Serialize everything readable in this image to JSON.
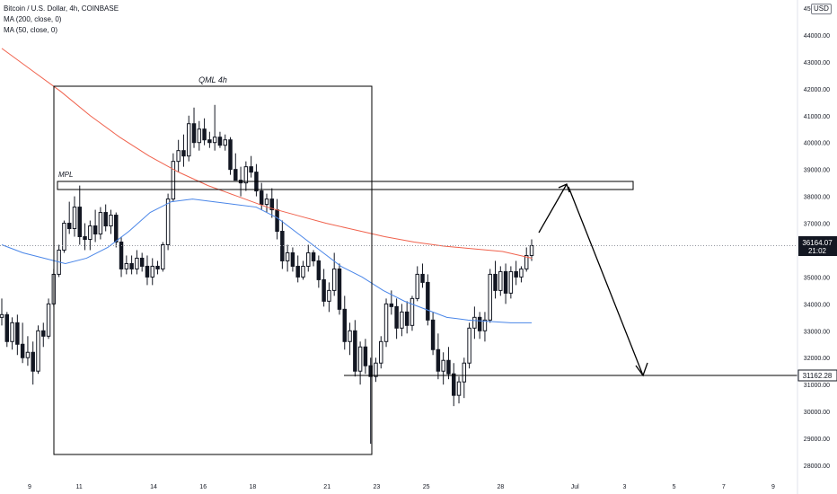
{
  "legend": {
    "symbol": "Bitcoin / U.S. Dollar, 4h, COINBASE",
    "ma200": "MA (200, close, 0)",
    "ma50": "MA (50, close, 0)"
  },
  "currency_badge": "USD",
  "colors": {
    "up": "#131722",
    "down": "#131722",
    "ma200": "#f0624d",
    "ma50": "#4a86e8",
    "annotation": "#000000",
    "axis_text": "#131722",
    "grid_dotted": "#9598a1"
  },
  "chart_data": {
    "type": "candlestick",
    "title": "Bitcoin / U.S. Dollar, 4h, COINBASE",
    "ylim": [
      27600,
      45300
    ],
    "y_ticks": [
      28000,
      29000,
      30000,
      31000,
      32000,
      33000,
      34000,
      35000,
      36000,
      37000,
      38000,
      39000,
      40000,
      41000,
      42000,
      43000,
      44000,
      45000
    ],
    "y_tick_labels": [
      "28000.00",
      "29000.00",
      "30000.00",
      "31000.00",
      "32000.00",
      "33000.00",
      "34000.00",
      "35000.00",
      "36000.00",
      "37000.00",
      "38000.00",
      "39000.00",
      "40000.00",
      "41000.00",
      "42000.00",
      "43000.00",
      "44000.00",
      "45000.00"
    ],
    "x_tick_labels": [
      "9",
      "11",
      "14",
      "16",
      "18",
      "21",
      "23",
      "25",
      "28",
      "Jul",
      "3",
      "5",
      "7",
      "9"
    ],
    "x_tick_day_index": [
      8,
      10,
      13,
      15,
      17,
      20,
      22,
      24,
      27,
      30,
      32,
      34,
      36,
      38
    ],
    "x_start_day_index": 7,
    "current_price": "36164.07",
    "countdown": "21:02",
    "target_price": "31162.28",
    "candles": [
      [
        33500,
        34200,
        33200,
        33600
      ],
      [
        33600,
        33700,
        32400,
        32600
      ],
      [
        32600,
        33500,
        32300,
        33300
      ],
      [
        33300,
        33600,
        32100,
        32500
      ],
      [
        32500,
        33300,
        31800,
        32000
      ],
      [
        32000,
        32800,
        31700,
        32200
      ],
      [
        32200,
        32600,
        31000,
        31500
      ],
      [
        31500,
        33200,
        31400,
        33000
      ],
      [
        33000,
        33300,
        32400,
        32800
      ],
      [
        32800,
        34200,
        32700,
        34000
      ],
      [
        34000,
        35300,
        33900,
        35100
      ],
      [
        35100,
        36200,
        35000,
        36000
      ],
      [
        36000,
        37100,
        35900,
        37000
      ],
      [
        37000,
        37800,
        36600,
        36800
      ],
      [
        36800,
        38000,
        36500,
        37600
      ],
      [
        37600,
        38400,
        36200,
        36500
      ],
      [
        36500,
        37000,
        36000,
        36400
      ],
      [
        36400,
        37100,
        36000,
        36900
      ],
      [
        36900,
        37500,
        36300,
        36600
      ],
      [
        36600,
        37600,
        36400,
        37400
      ],
      [
        37400,
        37700,
        36700,
        36900
      ],
      [
        36900,
        37500,
        36600,
        37300
      ],
      [
        37300,
        37400,
        36100,
        36300
      ],
      [
        36300,
        36500,
        35000,
        35300
      ],
      [
        35300,
        35800,
        35100,
        35500
      ],
      [
        35500,
        35800,
        35100,
        35300
      ],
      [
        35300,
        36000,
        35100,
        35700
      ],
      [
        35700,
        35900,
        35200,
        35400
      ],
      [
        35400,
        35800,
        34700,
        35000
      ],
      [
        35000,
        35700,
        34700,
        35400
      ],
      [
        35400,
        35600,
        35100,
        35300
      ],
      [
        35300,
        36300,
        35200,
        36200
      ],
      [
        36200,
        38100,
        36000,
        37900
      ],
      [
        37900,
        39600,
        37800,
        39300
      ],
      [
        39300,
        40100,
        38900,
        39700
      ],
      [
        39700,
        40300,
        39100,
        39500
      ],
      [
        39500,
        41000,
        39300,
        40700
      ],
      [
        40700,
        41300,
        39800,
        40000
      ],
      [
        40000,
        40800,
        39700,
        40500
      ],
      [
        40500,
        40900,
        39900,
        40100
      ],
      [
        40100,
        40400,
        39800,
        40000
      ],
      [
        40000,
        41400,
        39700,
        40200
      ],
      [
        40200,
        40400,
        39800,
        39900
      ],
      [
        39900,
        40300,
        39700,
        40100
      ],
      [
        40100,
        40200,
        38800,
        39000
      ],
      [
        39000,
        39600,
        38700,
        38600
      ],
      [
        38600,
        39100,
        38000,
        38500
      ],
      [
        38500,
        39300,
        38200,
        39100
      ],
      [
        39100,
        39500,
        38700,
        38900
      ],
      [
        38900,
        39200,
        38000,
        38200
      ],
      [
        38200,
        38500,
        37500,
        37700
      ],
      [
        37700,
        38100,
        37400,
        37900
      ],
      [
        37900,
        38300,
        37200,
        37500
      ],
      [
        37500,
        37900,
        36400,
        36700
      ],
      [
        36700,
        37100,
        35300,
        35600
      ],
      [
        35600,
        36200,
        35200,
        35900
      ],
      [
        35900,
        36100,
        35200,
        35400
      ],
      [
        35400,
        35800,
        34800,
        35000
      ],
      [
        35000,
        35600,
        34900,
        35400
      ],
      [
        35400,
        36200,
        35200,
        35900
      ],
      [
        35900,
        36000,
        35400,
        35600
      ],
      [
        35600,
        35800,
        34600,
        34900
      ],
      [
        34900,
        35300,
        33900,
        34100
      ],
      [
        34100,
        34800,
        33700,
        34500
      ],
      [
        34500,
        35900,
        34300,
        35300
      ],
      [
        35300,
        35500,
        33600,
        33800
      ],
      [
        33800,
        34300,
        32300,
        32600
      ],
      [
        32600,
        33300,
        32100,
        33000
      ],
      [
        33000,
        33400,
        31300,
        31500
      ],
      [
        31500,
        32600,
        31000,
        32400
      ],
      [
        32400,
        32700,
        31400,
        31700
      ],
      [
        31700,
        32000,
        28800,
        31300
      ],
      [
        31300,
        32000,
        31100,
        31800
      ],
      [
        31800,
        32800,
        31600,
        32600
      ],
      [
        32600,
        34200,
        32400,
        34000
      ],
      [
        34000,
        34500,
        33600,
        33900
      ],
      [
        33900,
        34200,
        32700,
        33100
      ],
      [
        33100,
        34000,
        32800,
        33700
      ],
      [
        33700,
        34100,
        32900,
        33200
      ],
      [
        33200,
        34300,
        33000,
        34200
      ],
      [
        34200,
        35400,
        34100,
        35100
      ],
      [
        35100,
        35500,
        34600,
        34800
      ],
      [
        34800,
        35100,
        33200,
        33400
      ],
      [
        33400,
        33700,
        32100,
        32300
      ],
      [
        32300,
        32900,
        31200,
        31500
      ],
      [
        31500,
        32200,
        31000,
        31900
      ],
      [
        31900,
        32400,
        31200,
        31400
      ],
      [
        31400,
        31800,
        30200,
        30600
      ],
      [
        30600,
        31300,
        30300,
        31100
      ],
      [
        31100,
        32000,
        30500,
        31800
      ],
      [
        31800,
        33300,
        31600,
        33100
      ],
      [
        33100,
        33900,
        32700,
        33500
      ],
      [
        33500,
        33700,
        32700,
        33000
      ],
      [
        33000,
        33700,
        32600,
        33400
      ],
      [
        33400,
        35300,
        33300,
        35100
      ],
      [
        35100,
        35600,
        34200,
        34500
      ],
      [
        34500,
        35400,
        34300,
        35200
      ],
      [
        35200,
        35500,
        34000,
        34400
      ],
      [
        34400,
        35400,
        34200,
        35200
      ],
      [
        35200,
        35600,
        34700,
        35000
      ],
      [
        35000,
        35400,
        34800,
        35300
      ],
      [
        35300,
        36100,
        35200,
        35800
      ],
      [
        35800,
        36400,
        35600,
        36164
      ]
    ],
    "ma200": [
      [
        0,
        43500
      ],
      [
        10,
        42700
      ],
      [
        20,
        41900
      ],
      [
        30,
        41000
      ],
      [
        40,
        40200
      ],
      [
        50,
        39500
      ],
      [
        60,
        38900
      ],
      [
        70,
        38400
      ],
      [
        80,
        38000
      ],
      [
        90,
        37600
      ],
      [
        100,
        37300
      ],
      [
        110,
        37000
      ],
      [
        120,
        36750
      ],
      [
        130,
        36500
      ],
      [
        140,
        36300
      ],
      [
        150,
        36150
      ],
      [
        160,
        36050
      ],
      [
        170,
        35950
      ],
      [
        180,
        35700
      ]
    ],
    "ma50": [
      [
        0,
        36200
      ],
      [
        20,
        35900
      ],
      [
        40,
        35700
      ],
      [
        60,
        35500
      ],
      [
        80,
        35700
      ],
      [
        100,
        36100
      ],
      [
        120,
        36700
      ],
      [
        140,
        37400
      ],
      [
        160,
        37800
      ],
      [
        180,
        37900
      ],
      [
        200,
        37800
      ],
      [
        220,
        37700
      ],
      [
        240,
        37600
      ],
      [
        260,
        37200
      ],
      [
        280,
        36600
      ],
      [
        300,
        36000
      ],
      [
        320,
        35400
      ],
      [
        340,
        35000
      ],
      [
        360,
        34500
      ],
      [
        380,
        34100
      ],
      [
        400,
        33800
      ],
      [
        420,
        33500
      ],
      [
        440,
        33400
      ],
      [
        460,
        33350
      ],
      [
        480,
        33300
      ],
      [
        500,
        33300
      ]
    ],
    "annotations": {
      "box_label": "QML 4h",
      "zone_label": "MPL"
    }
  }
}
